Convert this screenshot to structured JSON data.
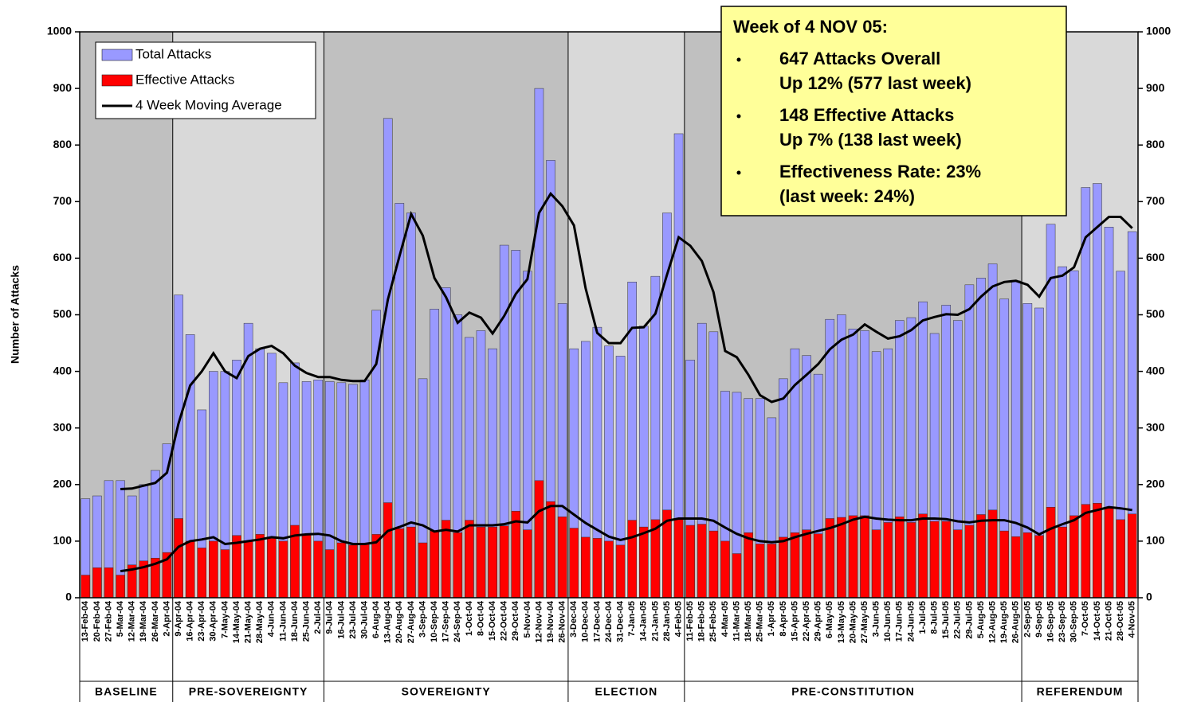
{
  "chart_data": {
    "type": "bar",
    "y_label": "Number of Attacks",
    "categories": [
      "13-Feb-04",
      "20-Feb-04",
      "27-Feb-04",
      "5-Mar-04",
      "12-Mar-04",
      "19-Mar-04",
      "26-Mar-04",
      "2-Apr-04",
      "9-Apr-04",
      "16-Apr-04",
      "23-Apr-04",
      "30-Apr-04",
      "7-May-04",
      "14-May-04",
      "21-May-04",
      "28-May-04",
      "4-Jun-04",
      "11-Jun-04",
      "18-Jun-04",
      "25-Jun-04",
      "2-Jul-04",
      "9-Jul-04",
      "16-Jul-04",
      "23-Jul-04",
      "30-Jul-04",
      "6-Aug-04",
      "13-Aug-04",
      "20-Aug-04",
      "27-Aug-04",
      "3-Sep-04",
      "10-Sep-04",
      "17-Sep-04",
      "24-Sep-04",
      "1-Oct-04",
      "8-Oct-04",
      "15-Oct-04",
      "22-Oct-04",
      "29-Oct-04",
      "5-Nov-04",
      "12-Nov-04",
      "19-Nov-04",
      "26-Nov-04",
      "3-Dec-04",
      "10-Dec-04",
      "17-Dec-04",
      "24-Dec-04",
      "31-Dec-04",
      "7-Jan-05",
      "14-Jan-05",
      "21-Jan-05",
      "28-Jan-05",
      "4-Feb-05",
      "11-Feb-05",
      "18-Feb-05",
      "25-Feb-05",
      "4-Mar-05",
      "11-Mar-05",
      "18-Mar-05",
      "25-Mar-05",
      "1-Apr-05",
      "8-Apr-05",
      "15-Apr-05",
      "22-Apr-05",
      "29-Apr-05",
      "6-May-05",
      "13-May-05",
      "20-May-05",
      "27-May-05",
      "3-Jun-05",
      "10-Jun-05",
      "17-Jun-05",
      "24-Jun-05",
      "1-Jul-05",
      "8-Jul-05",
      "15-Jul-05",
      "22-Jul-05",
      "29-Jul-05",
      "5-Aug-05",
      "12-Aug-05",
      "19-Aug-05",
      "26-Aug-05",
      "2-Sep-05",
      "9-Sep-05",
      "16-Sep-05",
      "23-Sep-05",
      "30-Sep-05",
      "7-Oct-05",
      "14-Oct-05",
      "21-Oct-05",
      "28-Oct-05",
      "4-Nov-05"
    ],
    "series": [
      {
        "name": "Total Attacks",
        "color": "#9999ff",
        "kind": "bar",
        "values": [
          175,
          180,
          207,
          207,
          180,
          200,
          225,
          272,
          535,
          465,
          332,
          400,
          400,
          420,
          485,
          440,
          432,
          380,
          415,
          382,
          385,
          382,
          380,
          377,
          385,
          508,
          847,
          697,
          680,
          387,
          510,
          548,
          500,
          460,
          472,
          440,
          623,
          614,
          577,
          900,
          773,
          520,
          440,
          453,
          478,
          445,
          427,
          558,
          480,
          568,
          680,
          820,
          420,
          485,
          470,
          365,
          363,
          352,
          352,
          318,
          387,
          440,
          428,
          395,
          492,
          500,
          475,
          472,
          435,
          440,
          490,
          495,
          523,
          467,
          517,
          490,
          553,
          565,
          590,
          528,
          560,
          520,
          512,
          660,
          585,
          578,
          725,
          732,
          655,
          577,
          647
        ]
      },
      {
        "name": "Effective Attacks",
        "color": "#ff0000",
        "kind": "bar",
        "values": [
          40,
          53,
          53,
          40,
          58,
          65,
          70,
          80,
          140,
          100,
          88,
          100,
          85,
          110,
          100,
          112,
          105,
          100,
          128,
          112,
          100,
          85,
          97,
          93,
          95,
          112,
          168,
          122,
          125,
          97,
          118,
          137,
          115,
          137,
          125,
          125,
          127,
          153,
          120,
          207,
          170,
          143,
          123,
          107,
          105,
          100,
          93,
          137,
          125,
          138,
          155,
          140,
          128,
          130,
          118,
          100,
          78,
          115,
          95,
          95,
          107,
          115,
          120,
          113,
          140,
          142,
          145,
          145,
          120,
          133,
          143,
          133,
          148,
          135,
          135,
          120,
          128,
          147,
          155,
          118,
          108,
          115,
          110,
          160,
          125,
          145,
          165,
          167,
          160,
          138,
          148
        ]
      },
      {
        "name": "4 Week Moving Average",
        "color": "#000000",
        "kind": "line",
        "values": [
          null,
          null,
          null,
          192,
          193,
          198,
          203,
          221,
          308,
          375,
          400,
          432,
          400,
          388,
          427,
          440,
          445,
          432,
          410,
          397,
          390,
          390,
          385,
          383,
          383,
          413,
          527,
          604,
          678,
          640,
          565,
          531,
          486,
          504,
          495,
          467,
          498,
          537,
          563,
          680,
          714,
          692,
          658,
          547,
          468,
          450,
          450,
          477,
          478,
          502,
          571,
          637,
          622,
          595,
          540,
          436,
          425,
          394,
          358,
          346,
          352,
          376,
          394,
          413,
          439,
          456,
          465,
          483,
          470,
          458,
          462,
          473,
          490,
          496,
          501,
          500,
          510,
          532,
          550,
          558,
          560,
          553,
          532,
          565,
          569,
          584,
          637,
          655,
          673,
          673,
          653
        ]
      },
      {
        "color": "#000000",
        "kind": "line",
        "values": [
          null,
          null,
          null,
          47,
          50,
          54,
          60,
          68,
          90,
          100,
          103,
          107,
          95,
          97,
          100,
          103,
          107,
          105,
          110,
          112,
          113,
          110,
          100,
          95,
          95,
          98,
          118,
          125,
          133,
          128,
          117,
          120,
          117,
          128,
          128,
          128,
          130,
          135,
          133,
          153,
          162,
          162,
          147,
          132,
          120,
          108,
          102,
          107,
          114,
          122,
          136,
          140,
          140,
          140,
          136,
          124,
          113,
          105,
          100,
          98,
          100,
          107,
          113,
          118,
          123,
          130,
          138,
          143,
          140,
          138,
          137,
          137,
          140,
          140,
          139,
          135,
          133,
          136,
          137,
          137,
          132,
          124,
          112,
          122,
          130,
          137,
          150,
          155,
          160,
          158,
          155
        ]
      }
    ],
    "phases": [
      {
        "label": "BASELINE",
        "from": "13-Feb-04",
        "to": "2-Apr-04",
        "background": "#c0c0c0"
      },
      {
        "label": "PRE-SOVEREIGNTY",
        "from": "9-Apr-04",
        "to": "2-Jul-04",
        "background": "#d9d9d9"
      },
      {
        "label": "SOVEREIGNTY",
        "from": "9-Jul-04",
        "to": "26-Nov-04",
        "background": "#c0c0c0"
      },
      {
        "label": "ELECTION",
        "from": "3-Dec-04",
        "to": "4-Feb-05",
        "background": "#d9d9d9"
      },
      {
        "label": "PRE-CONSTITUTION",
        "from": "11-Feb-05",
        "to": "26-Aug-05",
        "background": "#c0c0c0"
      },
      {
        "label": "REFERENDUM",
        "from": "2-Sep-05",
        "to": "4-Nov-05",
        "background": "#d9d9d9"
      }
    ],
    "annotation": {
      "title": "Week of 4 NOV 05:",
      "bullets": [
        [
          "647 Attacks Overall",
          "Up 12% (577 last week)"
        ],
        [
          "148 Effective Attacks",
          "Up 7% (138 last week)"
        ],
        [
          "Effectiveness Rate: 23%",
          "(last week: 24%)"
        ]
      ]
    },
    "ylim": [
      0,
      1000
    ],
    "yticks": [
      0,
      100,
      200,
      300,
      400,
      500,
      600,
      700,
      800,
      900,
      1000
    ],
    "y2lim": [
      0,
      1000
    ],
    "y2ticks": [
      0,
      100,
      200,
      300,
      400,
      500,
      600,
      700,
      800,
      900,
      1000
    ],
    "grid": false
  }
}
